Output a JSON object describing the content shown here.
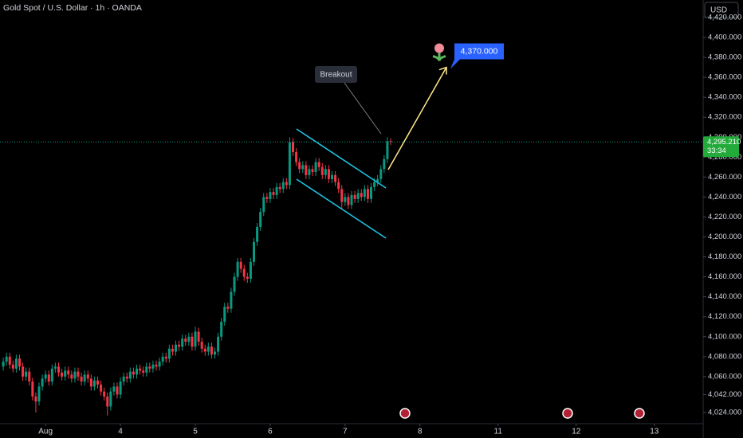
{
  "chart_data": {
    "type": "candlestick",
    "title": "Gold Spot / U.S. Dollar · 1h · OANDA",
    "currency": "USD",
    "open": [
      4070,
      4075,
      4080,
      4072,
      4068,
      4078,
      4070,
      4060,
      4065,
      4055,
      4040,
      4035,
      4050,
      4058,
      4062,
      4055,
      4068,
      4070,
      4064,
      4060,
      4066,
      4062,
      4058,
      4065,
      4060,
      4055,
      4062,
      4058,
      4050,
      4056,
      4052,
      4045,
      4040,
      4030,
      4045,
      4050,
      4042,
      4055,
      4060,
      4058,
      4065,
      4062,
      4068,
      4066,
      4064,
      4070,
      4068,
      4072,
      4070,
      4075,
      4080,
      4078,
      4088,
      4085,
      4092,
      4090,
      4098,
      4095,
      4100,
      4090,
      4105,
      4095,
      4088,
      4085,
      4090,
      4082,
      4085,
      4100,
      4115,
      4130,
      4128,
      4145,
      4160,
      4175,
      4168,
      4160,
      4158,
      4175,
      4195,
      4210,
      4225,
      4240,
      4238,
      4245,
      4242,
      4250,
      4248,
      4255,
      4252,
      4295,
      4285,
      4275,
      4268,
      4272,
      4262,
      4268,
      4265,
      4275,
      4270,
      4262,
      4268,
      4258,
      4262,
      4255,
      4248,
      4235,
      4240,
      4232,
      4242,
      4238,
      4244,
      4240,
      4248,
      4238,
      4250,
      4255,
      4258,
      4268,
      4278,
      4296
    ],
    "high": [
      4079,
      4084,
      4084,
      4076,
      4082,
      4082,
      4074,
      4069,
      4069,
      4059,
      4044,
      4054,
      4062,
      4066,
      4066,
      4072,
      4074,
      4074,
      4068,
      4070,
      4070,
      4066,
      4069,
      4069,
      4064,
      4066,
      4066,
      4062,
      4060,
      4060,
      4056,
      4049,
      4044,
      4049,
      4054,
      4054,
      4059,
      4064,
      4064,
      4069,
      4069,
      4072,
      4072,
      4070,
      4074,
      4074,
      4076,
      4076,
      4079,
      4084,
      4084,
      4092,
      4092,
      4096,
      4096,
      4102,
      4102,
      4104,
      4104,
      4110,
      4109,
      4099,
      4092,
      4094,
      4094,
      4089,
      4104,
      4119,
      4134,
      4134,
      4149,
      4164,
      4179,
      4179,
      4172,
      4164,
      4179,
      4199,
      4214,
      4229,
      4244,
      4244,
      4249,
      4249,
      4254,
      4254,
      4259,
      4259,
      4300,
      4299,
      4289,
      4279,
      4276,
      4276,
      4272,
      4272,
      4279,
      4279,
      4274,
      4272,
      4272,
      4266,
      4266,
      4259,
      4252,
      4244,
      4244,
      4246,
      4246,
      4248,
      4248,
      4252,
      4252,
      4254,
      4259,
      4262,
      4272,
      4282,
      4300,
      4299
    ],
    "low": [
      4066,
      4071,
      4068,
      4064,
      4064,
      4066,
      4056,
      4056,
      4051,
      4036,
      4024,
      4031,
      4046,
      4054,
      4051,
      4051,
      4064,
      4060,
      4056,
      4056,
      4058,
      4054,
      4054,
      4056,
      4051,
      4051,
      4054,
      4046,
      4046,
      4048,
      4041,
      4036,
      4021,
      4026,
      4041,
      4038,
      4038,
      4051,
      4054,
      4054,
      4058,
      4058,
      4062,
      4060,
      4060,
      4064,
      4064,
      4066,
      4066,
      4071,
      4074,
      4074,
      4081,
      4081,
      4086,
      4086,
      4091,
      4091,
      4086,
      4086,
      4091,
      4084,
      4081,
      4081,
      4078,
      4078,
      4081,
      4096,
      4111,
      4124,
      4124,
      4141,
      4156,
      4164,
      4156,
      4154,
      4154,
      4171,
      4191,
      4206,
      4221,
      4234,
      4234,
      4238,
      4238,
      4244,
      4244,
      4248,
      4248,
      4281,
      4271,
      4264,
      4264,
      4258,
      4258,
      4261,
      4261,
      4266,
      4258,
      4258,
      4254,
      4254,
      4251,
      4244,
      4228,
      4231,
      4228,
      4228,
      4234,
      4234,
      4236,
      4236,
      4234,
      4234,
      4246,
      4251,
      4254,
      4264,
      4274,
      4292
    ],
    "close": [
      4075,
      4080,
      4072,
      4068,
      4078,
      4070,
      4060,
      4065,
      4055,
      4040,
      4035,
      4050,
      4058,
      4062,
      4055,
      4068,
      4070,
      4064,
      4060,
      4066,
      4062,
      4058,
      4065,
      4060,
      4055,
      4062,
      4058,
      4050,
      4056,
      4052,
      4045,
      4040,
      4030,
      4045,
      4050,
      4042,
      4055,
      4060,
      4058,
      4065,
      4062,
      4068,
      4066,
      4064,
      4070,
      4068,
      4072,
      4070,
      4075,
      4080,
      4078,
      4088,
      4085,
      4092,
      4090,
      4098,
      4095,
      4100,
      4090,
      4105,
      4095,
      4088,
      4085,
      4090,
      4082,
      4085,
      4100,
      4115,
      4130,
      4128,
      4145,
      4160,
      4175,
      4168,
      4160,
      4158,
      4175,
      4195,
      4210,
      4225,
      4240,
      4238,
      4245,
      4242,
      4250,
      4248,
      4255,
      4252,
      4295,
      4285,
      4275,
      4268,
      4272,
      4262,
      4268,
      4265,
      4275,
      4270,
      4262,
      4268,
      4258,
      4262,
      4255,
      4248,
      4235,
      4240,
      4232,
      4242,
      4238,
      4244,
      4240,
      4248,
      4238,
      4250,
      4255,
      4258,
      4268,
      4278,
      4296,
      4295.21
    ],
    "up_color": "#089981",
    "down_color": "#f23645",
    "xlim": [
      -1,
      215
    ],
    "xticks": [
      {
        "value": 13,
        "label": "Aug"
      },
      {
        "value": 36,
        "label": "4"
      },
      {
        "value": 59,
        "label": "5"
      },
      {
        "value": 82,
        "label": "6"
      },
      {
        "value": 105,
        "label": "7"
      },
      {
        "value": 128,
        "label": "8"
      },
      {
        "value": 152,
        "label": "11"
      },
      {
        "value": 176,
        "label": "12"
      },
      {
        "value": 200,
        "label": "13"
      }
    ],
    "ylim": [
      4012.8,
      4437.5
    ],
    "yticks": [
      {
        "value": 4024,
        "label": "4,024.000"
      },
      {
        "value": 4042,
        "label": "4,042.000"
      },
      {
        "value": 4060,
        "label": "4,060.000"
      },
      {
        "value": 4080,
        "label": "4,080.000"
      },
      {
        "value": 4100,
        "label": "4,100.000"
      },
      {
        "value": 4120,
        "label": "4,120.000"
      },
      {
        "value": 4140,
        "label": "4,140.000"
      },
      {
        "value": 4160,
        "label": "4,160.000"
      },
      {
        "value": 4180,
        "label": "4,180.000"
      },
      {
        "value": 4200,
        "label": "4,200.000"
      },
      {
        "value": 4220,
        "label": "4,220.000"
      },
      {
        "value": 4240,
        "label": "4,240.000"
      },
      {
        "value": 4260,
        "label": "4,260.000"
      },
      {
        "value": 4280,
        "label": "4,280.000"
      },
      {
        "value": 4300,
        "label": "4,300.000"
      },
      {
        "value": 4320,
        "label": "4,320.000"
      },
      {
        "value": 4340,
        "label": "4,340.000"
      },
      {
        "value": 4360,
        "label": "4,360.000"
      },
      {
        "value": 4380,
        "label": "4,380.000"
      },
      {
        "value": 4400,
        "label": "4,400.000"
      },
      {
        "value": 4420,
        "label": "4,420.000"
      }
    ],
    "last_price": {
      "value": 4295.21,
      "label": "4,295.210"
    },
    "countdown": "33:34",
    "annotations": {
      "breakout": "Breakout",
      "target": {
        "value": 4370,
        "label": "4,370.000"
      }
    }
  }
}
